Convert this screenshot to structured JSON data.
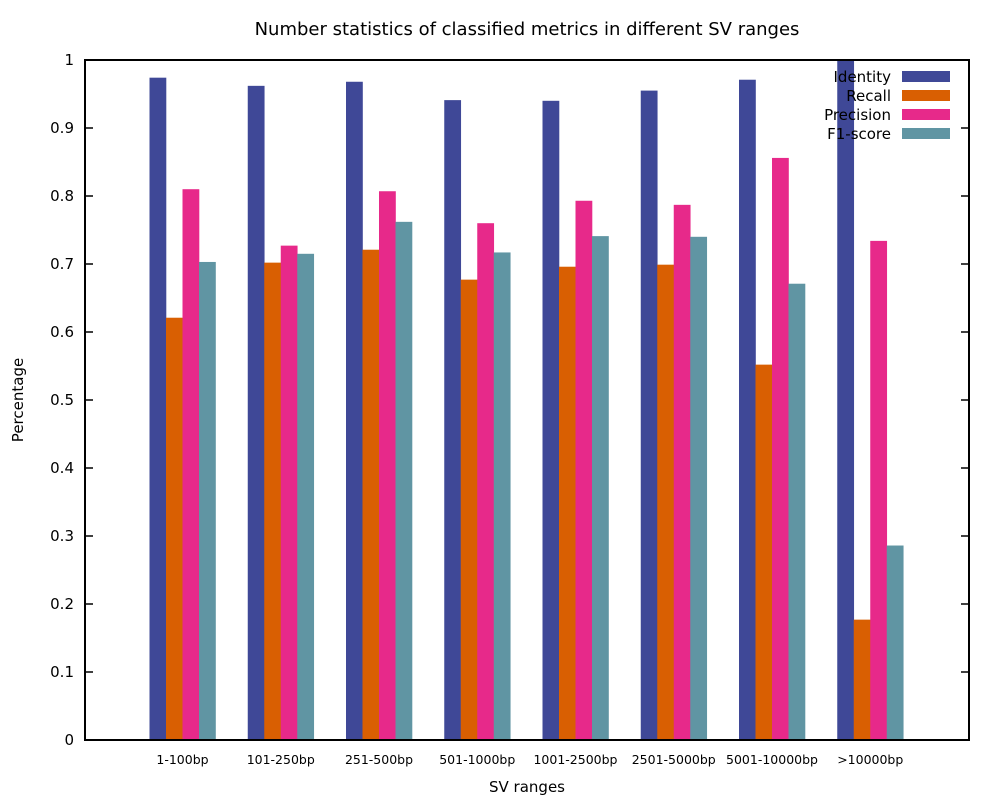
{
  "chart_data": {
    "type": "bar",
    "title": "Number statistics of classified metrics in different SV ranges",
    "xlabel": "SV ranges",
    "ylabel": "Percentage",
    "ylim": [
      0,
      1
    ],
    "yticks": [
      "0",
      "0.1",
      "0.2",
      "0.3",
      "0.4",
      "0.5",
      "0.6",
      "0.7",
      "0.8",
      "0.9",
      "1"
    ],
    "grid": false,
    "legend_position": "top-right",
    "categories": [
      "1-100bp",
      "101-250bp",
      "251-500bp",
      "501-1000bp",
      "1001-2500bp",
      "2501-5000bp",
      "5001-10000bp",
      ">10000bp"
    ],
    "series": [
      {
        "name": "Identity",
        "color": "#3f4897",
        "values": [
          0.974,
          0.962,
          0.968,
          0.941,
          0.94,
          0.955,
          0.971,
          1.0
        ]
      },
      {
        "name": "Recall",
        "color": "#d95f02",
        "values": [
          0.621,
          0.702,
          0.721,
          0.677,
          0.696,
          0.699,
          0.552,
          0.177
        ]
      },
      {
        "name": "Precision",
        "color": "#e7298a",
        "values": [
          0.81,
          0.727,
          0.807,
          0.76,
          0.793,
          0.787,
          0.856,
          0.734
        ]
      },
      {
        "name": "F1-score",
        "color": "#6095a3",
        "values": [
          0.703,
          0.715,
          0.762,
          0.717,
          0.741,
          0.74,
          0.671,
          0.286
        ]
      }
    ]
  }
}
